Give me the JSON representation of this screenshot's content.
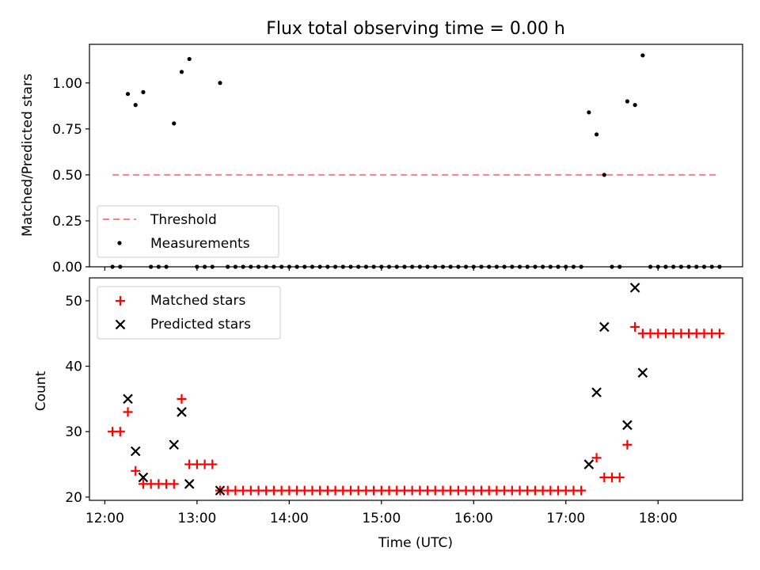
{
  "chart_data": [
    {
      "type": "scatter",
      "title": "Flux total observing time = 0.00 h",
      "xlabel": "",
      "ylabel": "Matched/Predicted stars",
      "xlim": [
        "11:50",
        "18:55"
      ],
      "ylim": [
        0,
        1.21
      ],
      "yticks": [
        0,
        0.25,
        0.5,
        0.75,
        1.0
      ],
      "ytick_labels": [
        "0.00",
        "0.25",
        "0.50",
        "0.75",
        "1.00"
      ],
      "grid": false,
      "legend": {
        "placement": "lower-left",
        "entries": [
          "Threshold",
          "Measurements"
        ]
      },
      "threshold": {
        "name": "Threshold",
        "value": 0.5,
        "x_start": "12:05",
        "x_end": "18:40",
        "color": "#ff7f7f",
        "style": "dashed"
      },
      "measurements": {
        "name": "Measurements",
        "color": "#000000",
        "nonzero": [
          {
            "x": "12:15",
            "y": 0.94
          },
          {
            "x": "12:20",
            "y": 0.88
          },
          {
            "x": "12:25",
            "y": 0.95
          },
          {
            "x": "12:45",
            "y": 0.78
          },
          {
            "x": "12:50",
            "y": 1.06
          },
          {
            "x": "12:55",
            "y": 1.13
          },
          {
            "x": "13:15",
            "y": 1.0
          },
          {
            "x": "17:15",
            "y": 0.84
          },
          {
            "x": "17:20",
            "y": 0.72
          },
          {
            "x": "17:25",
            "y": 0.5
          },
          {
            "x": "17:40",
            "y": 0.9
          },
          {
            "x": "17:45",
            "y": 0.88
          },
          {
            "x": "17:50",
            "y": 1.15
          }
        ],
        "zero_value": 0,
        "zero_times": [
          "12:05",
          "12:10",
          "12:30",
          "12:35",
          "12:40",
          "13:00",
          "13:05",
          "13:10",
          "13:20",
          "13:25",
          "13:30",
          "13:35",
          "13:40",
          "13:45",
          "13:50",
          "13:55",
          "14:00",
          "14:05",
          "14:10",
          "14:15",
          "14:20",
          "14:25",
          "14:30",
          "14:35",
          "14:40",
          "14:45",
          "14:50",
          "14:55",
          "15:00",
          "15:05",
          "15:10",
          "15:15",
          "15:20",
          "15:25",
          "15:30",
          "15:35",
          "15:40",
          "15:45",
          "15:50",
          "15:55",
          "16:00",
          "16:05",
          "16:10",
          "16:15",
          "16:20",
          "16:25",
          "16:30",
          "16:35",
          "16:40",
          "16:45",
          "16:50",
          "16:55",
          "17:00",
          "17:05",
          "17:10",
          "17:30",
          "17:35",
          "17:55",
          "18:00",
          "18:05",
          "18:10",
          "18:15",
          "18:20",
          "18:25",
          "18:30",
          "18:35",
          "18:40"
        ]
      }
    },
    {
      "type": "scatter",
      "title": "",
      "xlabel": "Time (UTC)",
      "ylabel": "Count",
      "xlim": [
        "11:50",
        "18:55"
      ],
      "ylim": [
        19.5,
        53.5
      ],
      "xticks": [
        "12:00",
        "13:00",
        "14:00",
        "15:00",
        "16:00",
        "17:00",
        "18:00"
      ],
      "yticks": [
        20,
        30,
        40,
        50
      ],
      "ytick_labels": [
        "20",
        "30",
        "40",
        "50"
      ],
      "grid": false,
      "legend": {
        "placement": "upper-left",
        "entries": [
          "Matched stars",
          "Predicted stars"
        ]
      },
      "matched": {
        "name": "Matched stars",
        "marker": "+",
        "color": "#ff0000",
        "points": [
          {
            "x": "12:05",
            "y": 30
          },
          {
            "x": "12:10",
            "y": 30
          },
          {
            "x": "12:15",
            "y": 33
          },
          {
            "x": "12:20",
            "y": 24
          },
          {
            "x": "12:25",
            "y": 22
          },
          {
            "x": "12:30",
            "y": 22
          },
          {
            "x": "12:35",
            "y": 22
          },
          {
            "x": "12:40",
            "y": 22
          },
          {
            "x": "12:45",
            "y": 22
          },
          {
            "x": "12:50",
            "y": 35
          },
          {
            "x": "12:55",
            "y": 25
          },
          {
            "x": "13:00",
            "y": 25
          },
          {
            "x": "13:05",
            "y": 25
          },
          {
            "x": "13:10",
            "y": 25
          },
          {
            "x": "13:15",
            "y": 21
          }
        ],
        "flat_runs": [
          {
            "y": 21,
            "x_start": "13:20",
            "x_end": "17:10"
          },
          {
            "y": 45,
            "x_start": "17:50",
            "x_end": "18:40"
          }
        ],
        "tail_points": [
          {
            "x": "17:20",
            "y": 26
          },
          {
            "x": "17:25",
            "y": 23
          },
          {
            "x": "17:30",
            "y": 23
          },
          {
            "x": "17:35",
            "y": 23
          },
          {
            "x": "17:40",
            "y": 28
          },
          {
            "x": "17:45",
            "y": 46
          }
        ]
      },
      "predicted": {
        "name": "Predicted stars",
        "marker": "x",
        "color": "#000000",
        "points": [
          {
            "x": "12:15",
            "y": 35
          },
          {
            "x": "12:20",
            "y": 27
          },
          {
            "x": "12:25",
            "y": 23
          },
          {
            "x": "12:45",
            "y": 28
          },
          {
            "x": "12:50",
            "y": 33
          },
          {
            "x": "12:55",
            "y": 22
          },
          {
            "x": "13:15",
            "y": 21
          },
          {
            "x": "17:15",
            "y": 25
          },
          {
            "x": "17:20",
            "y": 36
          },
          {
            "x": "17:25",
            "y": 46
          },
          {
            "x": "17:40",
            "y": 31
          },
          {
            "x": "17:45",
            "y": 52
          },
          {
            "x": "17:50",
            "y": 39
          }
        ]
      }
    }
  ]
}
